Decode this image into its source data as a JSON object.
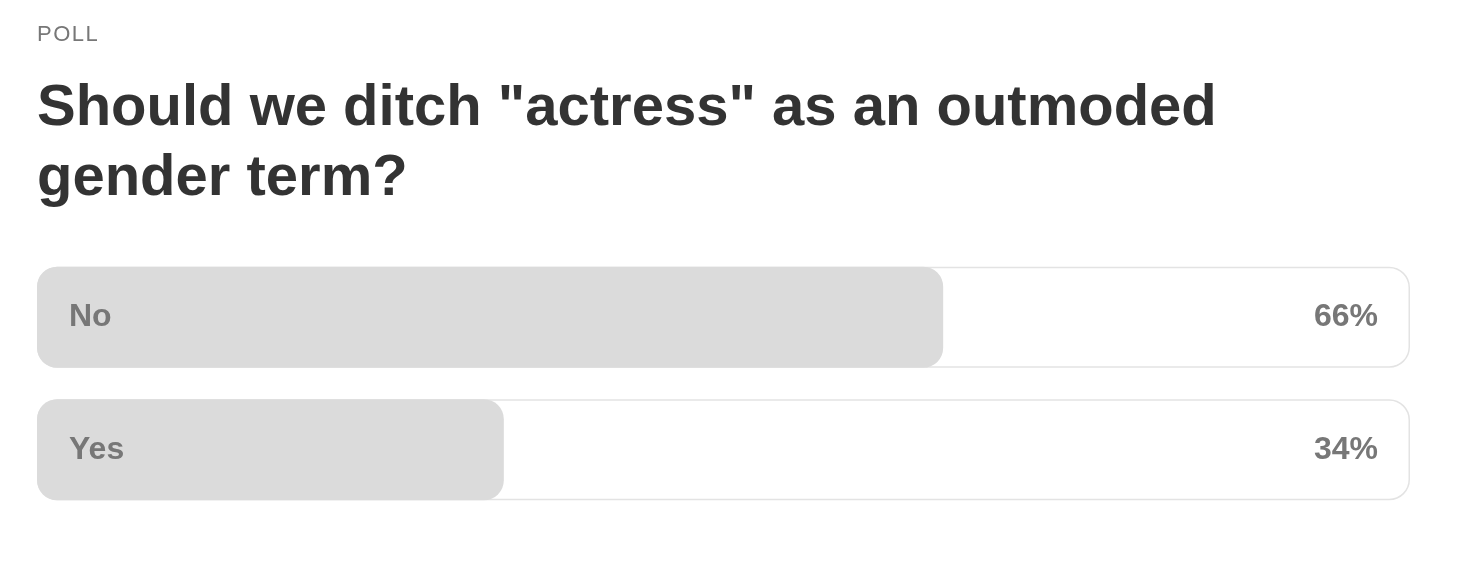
{
  "chart_data": {
    "type": "bar",
    "orientation": "horizontal",
    "annotations": [
      "POLL"
    ],
    "title": "Should we ditch \"actress\" as an outmoded gender term?",
    "categories": [
      "No",
      "Yes"
    ],
    "values": [
      66,
      34
    ],
    "color": "#dbdbdb",
    "value_labels": [
      "66%",
      "34%"
    ],
    "xlim": [
      0,
      100
    ],
    "tick_labels": "y"
  }
}
